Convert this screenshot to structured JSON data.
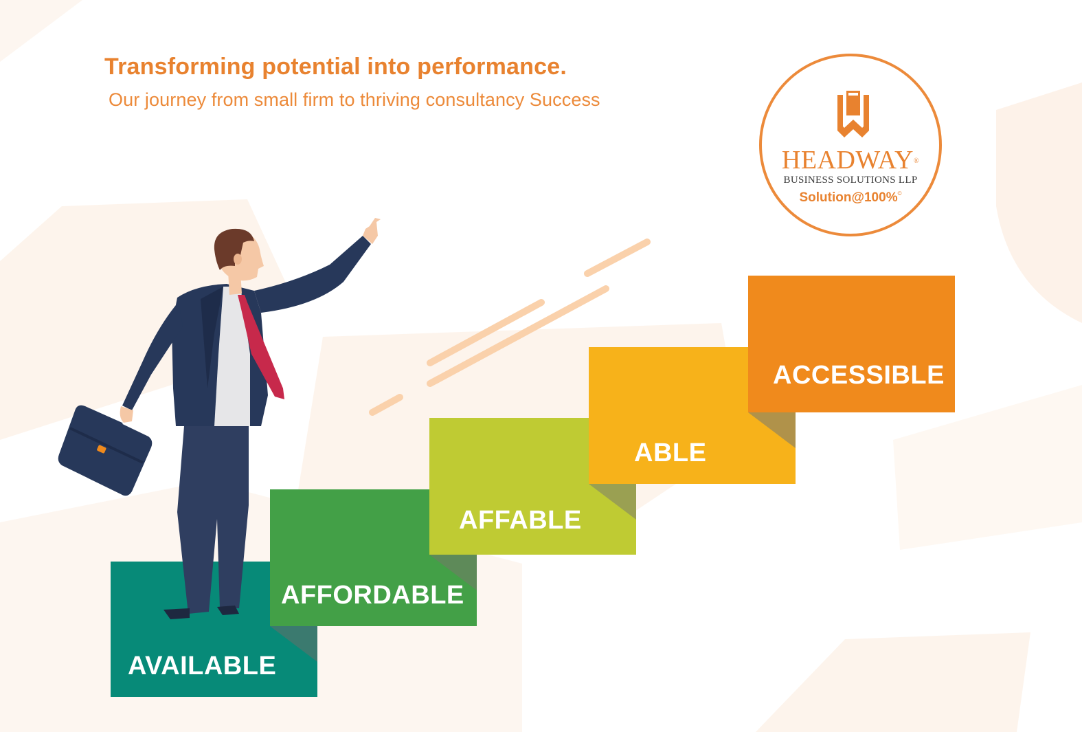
{
  "headline": "Transforming potential into performance.",
  "subheadline": "Our journey from small firm to thriving consultancy Success",
  "logo": {
    "brand": "HEADWAY",
    "registered": "®",
    "company": "BUSINESS SOLUTIONS LLP",
    "tagline": "Solution@100%",
    "tagline_mark": "©"
  },
  "steps": [
    {
      "label": "AVAILABLE",
      "color": "#078A78"
    },
    {
      "label": "AFFORDABLE",
      "color": "#43A047"
    },
    {
      "label": "AFFABLE",
      "color": "#BFCB33"
    },
    {
      "label": "ABLE",
      "color": "#F7B21A"
    },
    {
      "label": "ACCESSIBLE",
      "color": "#F08A1C"
    }
  ],
  "colors": {
    "accent": "#E8822F",
    "suit": "#27385A",
    "tie": "#C7294B"
  },
  "icons": [
    "headway-logo-icon",
    "businessman-illustration",
    "briefcase-icon"
  ]
}
